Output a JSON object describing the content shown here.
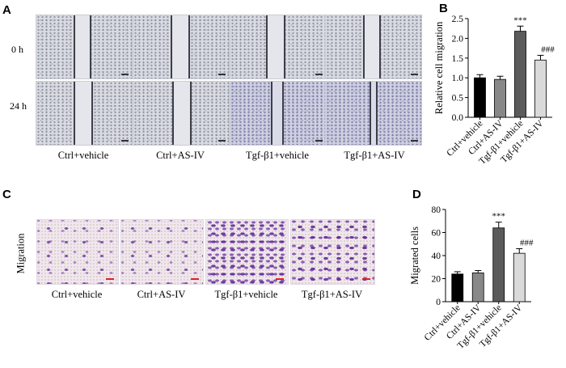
{
  "panels": {
    "A": {
      "letter": "A",
      "row_labels": [
        "0 h",
        "24 h"
      ],
      "captions": [
        "Ctrl+vehicle",
        "Ctrl+AS-IV",
        "Tgf-β1+vehicle",
        "Tgf-β1+AS-IV"
      ]
    },
    "B": {
      "letter": "B"
    },
    "C": {
      "letter": "C",
      "side_label": "Migration",
      "captions": [
        "Ctrl+vehicle",
        "Ctrl+AS-IV",
        "Tgf-β1+vehicle",
        "Tgf-β1+AS-IV"
      ]
    },
    "D": {
      "letter": "D"
    }
  },
  "chart_data": [
    {
      "panel": "B",
      "type": "bar",
      "title": "",
      "xlabel": "",
      "ylabel": "Relative cell migration",
      "categories": [
        "Ctrl+vehicle",
        "Ctrl+AS-IV",
        "Tgf-β1+vehicle",
        "Tgf-β1+AS-IV"
      ],
      "values": [
        1.0,
        0.96,
        2.18,
        1.45
      ],
      "errors": [
        0.08,
        0.08,
        0.13,
        0.12
      ],
      "annotations": [
        "",
        "",
        "***",
        "###"
      ],
      "bar_colors": [
        "#000000",
        "#888888",
        "#5b5b5b",
        "#dadada"
      ],
      "ylim": [
        0,
        2.5
      ],
      "yticks": [
        0.0,
        0.5,
        1.0,
        1.5,
        2.0,
        2.5
      ],
      "ytick_labels": [
        "0.0",
        "0.5",
        "1.0",
        "1.5",
        "2.0",
        "2.5"
      ],
      "grid": false
    },
    {
      "panel": "D",
      "type": "bar",
      "title": "",
      "xlabel": "",
      "ylabel": "Migrated cells",
      "categories": [
        "Ctrl+vehicle",
        "Ctrl+AS-IV",
        "Tgf-β1+vehicle",
        "Tgf-β1+AS-IV"
      ],
      "values": [
        24,
        25,
        64,
        42
      ],
      "errors": [
        2,
        2,
        5,
        4
      ],
      "annotations": [
        "",
        "",
        "***",
        "###"
      ],
      "bar_colors": [
        "#000000",
        "#888888",
        "#5b5b5b",
        "#dadada"
      ],
      "ylim": [
        0,
        80
      ],
      "yticks": [
        0,
        20,
        40,
        60,
        80
      ],
      "ytick_labels": [
        "0",
        "20",
        "40",
        "60",
        "80"
      ],
      "grid": false
    }
  ]
}
